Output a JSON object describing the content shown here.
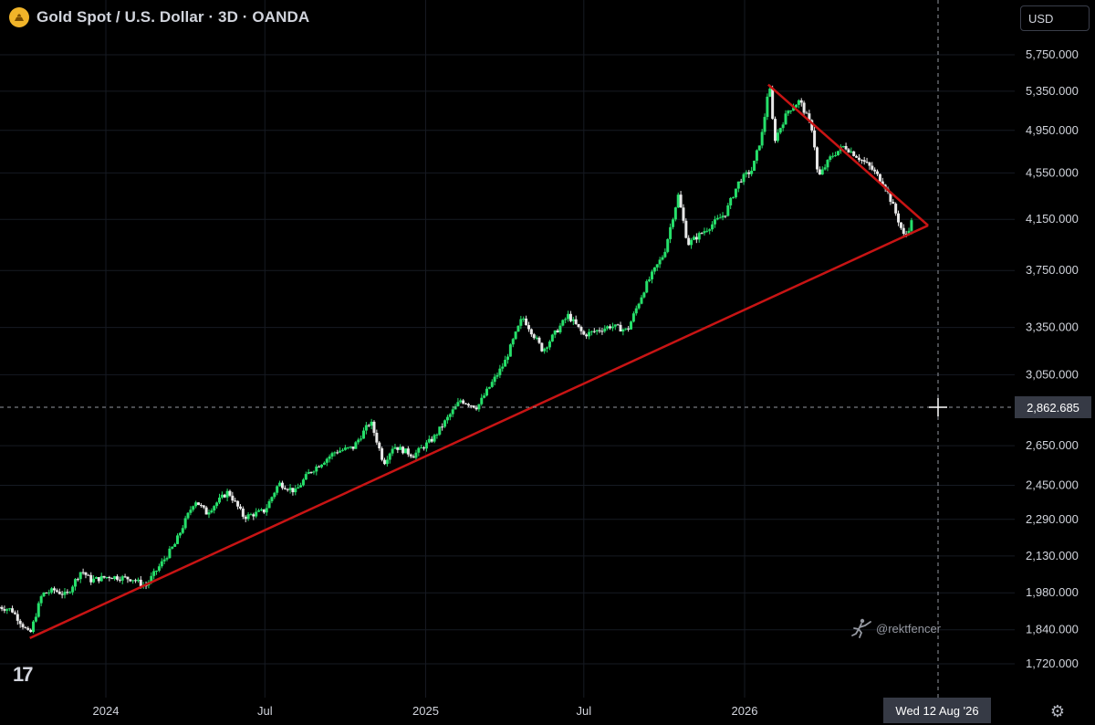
{
  "header": {
    "title": "Gold Spot / U.S. Dollar · 3D · OANDA",
    "logo_icon": "gold-bars-icon"
  },
  "currency": {
    "label": "USD"
  },
  "crosshair": {
    "price_label": "2,862.685",
    "date_label": "Wed 12 Aug '26"
  },
  "watermark": {
    "text": "@rektfencer",
    "icon": "fencer-icon"
  },
  "branding": {
    "logo": "17"
  },
  "colors": {
    "up": "#26e06a",
    "down": "#e8e8e8",
    "trendline": "#c81414",
    "background": "#000000"
  },
  "chart_data": {
    "type": "candlestick",
    "title": "Gold Spot / U.S. Dollar · 3D · OANDA",
    "y_scale": "log",
    "ylim": [
      1650,
      5980
    ],
    "y_ticks": [
      "5,750.000",
      "5,350.000",
      "4,950.000",
      "4,550.000",
      "4,150.000",
      "3,750.000",
      "3,350.000",
      "3,050.000",
      "2,650.000",
      "2,450.000",
      "2,290.000",
      "2,130.000",
      "1,980.000",
      "1,840.000",
      "1,720.000"
    ],
    "x_ticks": [
      "2024",
      "Jul",
      "2025",
      "Jul",
      "2026"
    ],
    "trendlines": [
      {
        "from": [
          "2023-10-06",
          1810
        ],
        "to": [
          "2026-07-30",
          4100
        ]
      },
      {
        "from": [
          "2026-01-28",
          5420
        ],
        "to": [
          "2026-07-30",
          4100
        ]
      }
    ],
    "price_path": [
      [
        "2023-09-01",
        1925
      ],
      [
        "2023-09-15",
        1915
      ],
      [
        "2023-10-06",
        1820
      ],
      [
        "2023-10-20",
        1975
      ],
      [
        "2023-11-03",
        1990
      ],
      [
        "2023-11-17",
        1970
      ],
      [
        "2023-12-04",
        2070
      ],
      [
        "2023-12-15",
        2030
      ],
      [
        "2024-01-05",
        2045
      ],
      [
        "2024-02-01",
        2035
      ],
      [
        "2024-02-15",
        2005
      ],
      [
        "2024-03-01",
        2080
      ],
      [
        "2024-03-20",
        2180
      ],
      [
        "2024-04-12",
        2380
      ],
      [
        "2024-04-25",
        2320
      ],
      [
        "2024-05-20",
        2420
      ],
      [
        "2024-06-07",
        2300
      ],
      [
        "2024-07-01",
        2330
      ],
      [
        "2024-07-17",
        2460
      ],
      [
        "2024-08-05",
        2420
      ],
      [
        "2024-08-20",
        2510
      ],
      [
        "2024-09-20",
        2620
      ],
      [
        "2024-10-10",
        2640
      ],
      [
        "2024-10-30",
        2780
      ],
      [
        "2024-11-14",
        2560
      ],
      [
        "2024-11-25",
        2650
      ],
      [
        "2024-12-18",
        2600
      ],
      [
        "2025-01-10",
        2690
      ],
      [
        "2025-02-10",
        2900
      ],
      [
        "2025-03-01",
        2860
      ],
      [
        "2025-04-01",
        3120
      ],
      [
        "2025-04-22",
        3420
      ],
      [
        "2025-05-15",
        3200
      ],
      [
        "2025-06-13",
        3430
      ],
      [
        "2025-07-01",
        3300
      ],
      [
        "2025-08-01",
        3360
      ],
      [
        "2025-08-20",
        3330
      ],
      [
        "2025-09-10",
        3640
      ],
      [
        "2025-10-01",
        3880
      ],
      [
        "2025-10-17",
        4350
      ],
      [
        "2025-10-28",
        3950
      ],
      [
        "2025-11-20",
        4080
      ],
      [
        "2025-12-10",
        4200
      ],
      [
        "2025-12-26",
        4480
      ],
      [
        "2026-01-10",
        4580
      ],
      [
        "2026-01-22",
        4950
      ],
      [
        "2026-01-29",
        5450
      ],
      [
        "2026-02-04",
        4850
      ],
      [
        "2026-02-20",
        5150
      ],
      [
        "2026-03-05",
        5250
      ],
      [
        "2026-03-20",
        4950
      ],
      [
        "2026-03-26",
        4500
      ],
      [
        "2026-04-10",
        4700
      ],
      [
        "2026-04-25",
        4800
      ],
      [
        "2026-05-10",
        4700
      ],
      [
        "2026-05-25",
        4600
      ],
      [
        "2026-06-10",
        4450
      ],
      [
        "2026-06-22",
        4220
      ],
      [
        "2026-07-03",
        4000
      ],
      [
        "2026-07-13",
        4160
      ]
    ]
  }
}
